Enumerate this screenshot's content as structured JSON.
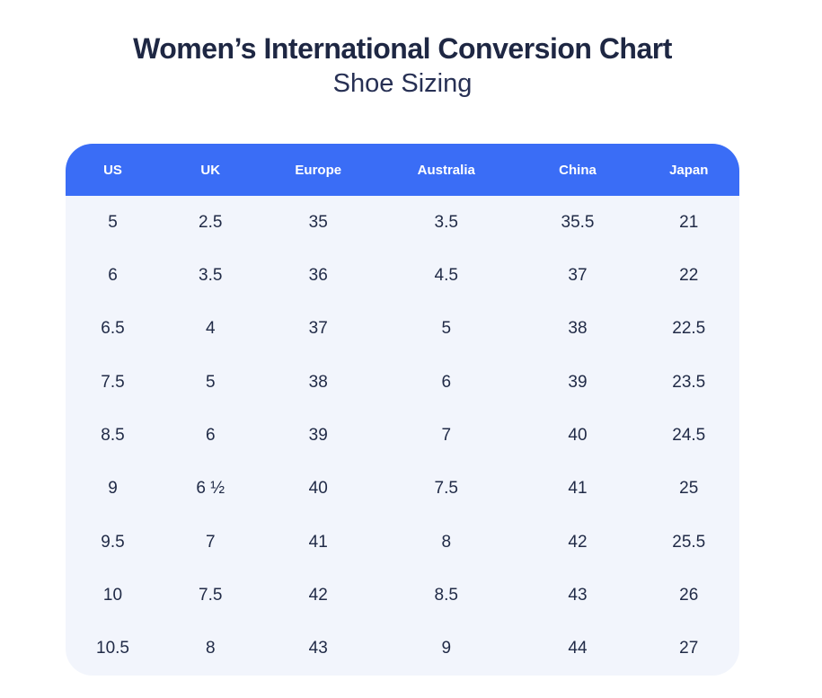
{
  "page": {
    "title": "Women’s International Conversion Chart",
    "subtitle": "Shoe Sizing"
  },
  "colors": {
    "header_bg": "#3a6df6",
    "header_text": "#ffffff",
    "body_bg": "#f2f5fc",
    "body_text": "#212b47",
    "title_text": "#1e2743",
    "page_bg": "#ffffff"
  },
  "chart_data": {
    "type": "table",
    "title": "Women’s International Conversion Chart",
    "subtitle": "Shoe Sizing",
    "columns": [
      "US",
      "UK",
      "Europe",
      "Australia",
      "China",
      "Japan"
    ],
    "rows": [
      [
        "5",
        "2.5",
        "35",
        "3.5",
        "35.5",
        "21"
      ],
      [
        "6",
        "3.5",
        "36",
        "4.5",
        "37",
        "22"
      ],
      [
        "6.5",
        "4",
        "37",
        "5",
        "38",
        "22.5"
      ],
      [
        "7.5",
        "5",
        "38",
        "6",
        "39",
        "23.5"
      ],
      [
        "8.5",
        "6",
        "39",
        "7",
        "40",
        "24.5"
      ],
      [
        "9",
        "6 ½",
        "40",
        "7.5",
        "41",
        "25"
      ],
      [
        "9.5",
        "7",
        "41",
        "8",
        "42",
        "25.5"
      ],
      [
        "10",
        "7.5",
        "42",
        "8.5",
        "43",
        "26"
      ],
      [
        "10.5",
        "8",
        "43",
        "9",
        "44",
        "27"
      ]
    ]
  }
}
